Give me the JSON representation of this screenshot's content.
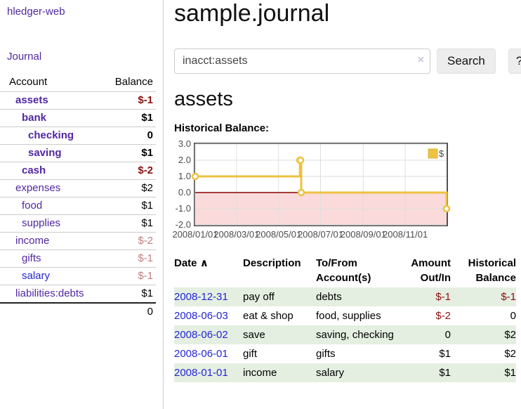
{
  "app": {
    "brand": "hledger-web",
    "nav_journal": "Journal"
  },
  "sidebar": {
    "header": {
      "account": "Account",
      "balance": "Balance"
    },
    "accounts": [
      {
        "label": "assets",
        "depth": 1,
        "bold": true,
        "balance": "$-1",
        "balance_class": "neg-strong"
      },
      {
        "label": "bank",
        "depth": 2,
        "bold": true,
        "balance": "$1",
        "balance_class": "pos"
      },
      {
        "label": "checking",
        "depth": 3,
        "bold": true,
        "balance": "0",
        "balance_class": "pos"
      },
      {
        "label": "saving",
        "depth": 3,
        "bold": true,
        "balance": "$1",
        "balance_class": "pos"
      },
      {
        "label": "cash",
        "depth": 2,
        "bold": true,
        "balance": "$-2",
        "balance_class": "neg-strong"
      },
      {
        "label": "expenses",
        "depth": 1,
        "bold": false,
        "balance": "$2",
        "balance_class": "pos"
      },
      {
        "label": "food",
        "depth": 2,
        "bold": false,
        "balance": "$1",
        "balance_class": "pos"
      },
      {
        "label": "supplies",
        "depth": 2,
        "bold": false,
        "balance": "$1",
        "balance_class": "pos"
      },
      {
        "label": "income",
        "depth": 1,
        "bold": false,
        "balance": "$-2",
        "balance_class": "neg-soft"
      },
      {
        "label": "gifts",
        "depth": 2,
        "bold": false,
        "balance": "$-1",
        "balance_class": "neg-soft"
      },
      {
        "label": "salary",
        "depth": 2,
        "bold": false,
        "balance": "$-1",
        "balance_class": "neg-soft",
        "link_variant": "blue"
      },
      {
        "label": "liabilities:debts",
        "depth": 1,
        "bold": false,
        "balance": "$1",
        "balance_class": "pos"
      }
    ],
    "total": "0"
  },
  "main": {
    "title": "sample.journal",
    "search": {
      "value": "inacct:assets",
      "clear_icon": "×",
      "button": "Search",
      "help_button": "?"
    },
    "account_heading": "assets",
    "chart_label": "Historical Balance:"
  },
  "chart_data": {
    "type": "line",
    "title": "Historical Balance",
    "step": true,
    "legend": "$",
    "legend_position": "top-right",
    "grid": true,
    "x_range": [
      "2008-01-01",
      "2008-12-31"
    ],
    "ylim": [
      -2,
      3
    ],
    "y_ticks": [
      {
        "v": 3,
        "label": "3.0"
      },
      {
        "v": 2,
        "label": "2.0"
      },
      {
        "v": 1,
        "label": "1.0"
      },
      {
        "v": 0,
        "label": "0.0"
      },
      {
        "v": -1,
        "label": "-1.0"
      },
      {
        "v": -2,
        "label": "-2.0"
      }
    ],
    "x_ticks": [
      {
        "date": "2008-01-01",
        "label": "2008/01/01"
      },
      {
        "date": "2008-03-01",
        "label": "2008/03/01"
      },
      {
        "date": "2008-05-01",
        "label": "2008/05/01"
      },
      {
        "date": "2008-07-01",
        "label": "2008/07/01"
      },
      {
        "date": "2008-09-01",
        "label": "2008/09/01"
      },
      {
        "date": "2008-11-01",
        "label": "2008/11/01"
      }
    ],
    "series": [
      {
        "name": "$",
        "color": "#edc240",
        "points": [
          [
            "2008-01-01",
            1
          ],
          [
            "2008-06-01",
            2
          ],
          [
            "2008-06-02",
            2
          ],
          [
            "2008-06-03",
            0
          ],
          [
            "2008-12-31",
            -1
          ]
        ]
      }
    ],
    "colors": {
      "negative_region": "#fadada",
      "zero_line": "#8b0000",
      "grid_line": "#dedede",
      "border": "#515151",
      "series": "#edc240"
    }
  },
  "register": {
    "headers": {
      "date": "Date",
      "sort_icon": "∧",
      "description": "Description",
      "accounts": "To/From Account(s)",
      "amount": "Amount Out/In",
      "balance": "Historical Balance"
    },
    "rows": [
      {
        "date": "2008-12-31",
        "description": "pay off",
        "accounts": "debts",
        "amount": "$-1",
        "amount_neg": true,
        "balance": "$-1",
        "balance_neg": true
      },
      {
        "date": "2008-06-03",
        "description": "eat & shop",
        "accounts": "food, supplies",
        "amount": "$-2",
        "amount_neg": true,
        "balance": "0",
        "balance_neg": false
      },
      {
        "date": "2008-06-02",
        "description": "save",
        "accounts": "saving, checking",
        "amount": "0",
        "amount_neg": false,
        "balance": "$2",
        "balance_neg": false
      },
      {
        "date": "2008-06-01",
        "description": "gift",
        "accounts": "gifts",
        "amount": "$1",
        "amount_neg": false,
        "balance": "$2",
        "balance_neg": false
      },
      {
        "date": "2008-01-01",
        "description": "income",
        "accounts": "salary",
        "amount": "$1",
        "amount_neg": false,
        "balance": "$1",
        "balance_neg": false
      }
    ]
  }
}
